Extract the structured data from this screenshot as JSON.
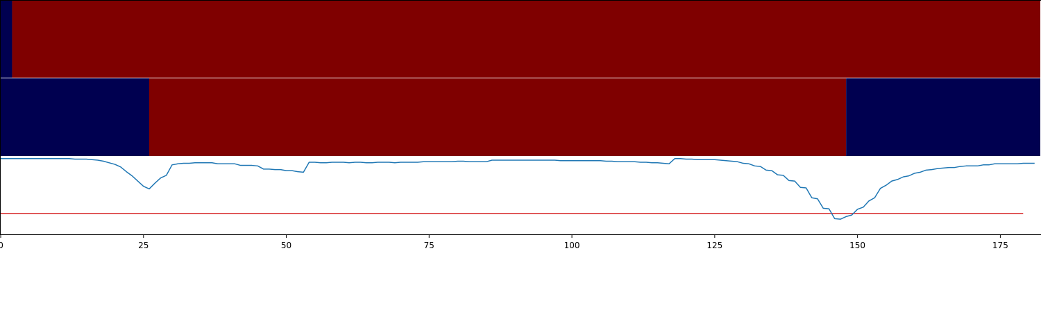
{
  "chart_data": {
    "type": "line",
    "panels": [
      {
        "name": "top-heatmap-strip",
        "type": "heatmap",
        "segments": [
          {
            "start": 0,
            "end": 2,
            "state": "low"
          },
          {
            "start": 2,
            "end": 182,
            "state": "high"
          }
        ]
      },
      {
        "name": "middle-heatmap-strip",
        "type": "heatmap",
        "segments": [
          {
            "start": 0,
            "end": 26,
            "state": "low"
          },
          {
            "start": 26,
            "end": 148,
            "state": "high"
          },
          {
            "start": 148,
            "end": 182,
            "state": "low"
          }
        ]
      },
      {
        "name": "line-panel",
        "type": "line",
        "xlim": [
          0,
          182
        ],
        "ylim": [
          -0.4,
          1.1
        ],
        "threshold": 0,
        "series": [
          {
            "x": [
              0,
              1,
              2,
              3,
              4,
              5,
              6,
              7,
              8,
              9,
              10,
              11,
              12,
              13,
              14,
              15,
              16,
              17,
              18,
              19,
              20,
              21,
              22,
              23,
              24,
              25,
              26,
              27,
              28,
              29,
              30,
              31,
              32,
              33,
              34,
              35,
              36,
              37,
              38,
              39,
              40,
              41,
              42,
              43,
              44,
              45,
              46,
              47,
              48,
              49,
              50,
              51,
              52,
              53,
              54,
              55,
              56,
              57,
              58,
              59,
              60,
              61,
              62,
              63,
              64,
              65,
              66,
              67,
              68,
              69,
              70,
              71,
              72,
              73,
              74,
              75,
              76,
              77,
              78,
              79,
              80,
              81,
              82,
              83,
              84,
              85,
              86,
              87,
              88,
              89,
              90,
              91,
              92,
              93,
              94,
              95,
              96,
              97,
              98,
              99,
              100,
              101,
              102,
              103,
              104,
              105,
              106,
              107,
              108,
              109,
              110,
              111,
              112,
              113,
              114,
              115,
              116,
              117,
              118,
              119,
              120,
              121,
              122,
              123,
              124,
              125,
              126,
              127,
              128,
              129,
              130,
              131,
              132,
              133,
              134,
              135,
              136,
              137,
              138,
              139,
              140,
              141,
              142,
              143,
              144,
              145,
              146,
              147,
              148,
              149,
              150,
              151,
              152,
              153,
              154,
              155,
              156,
              157,
              158,
              159,
              160,
              161,
              162,
              163,
              164,
              165,
              166,
              167,
              168,
              169,
              170,
              171,
              172,
              173,
              174,
              175,
              176,
              177,
              178,
              179,
              180,
              181
            ],
            "y": [
              1.05,
              1.05,
              1.05,
              1.05,
              1.05,
              1.05,
              1.05,
              1.05,
              1.05,
              1.05,
              1.05,
              1.05,
              1.05,
              1.04,
              1.04,
              1.04,
              1.03,
              1.02,
              1.0,
              0.97,
              0.94,
              0.89,
              0.8,
              0.72,
              0.62,
              0.52,
              0.47,
              0.58,
              0.68,
              0.73,
              0.93,
              0.95,
              0.96,
              0.96,
              0.97,
              0.97,
              0.97,
              0.97,
              0.95,
              0.95,
              0.95,
              0.95,
              0.92,
              0.92,
              0.92,
              0.91,
              0.85,
              0.85,
              0.84,
              0.84,
              0.82,
              0.82,
              0.8,
              0.79,
              0.98,
              0.98,
              0.97,
              0.97,
              0.98,
              0.98,
              0.98,
              0.97,
              0.98,
              0.98,
              0.97,
              0.97,
              0.98,
              0.98,
              0.98,
              0.97,
              0.98,
              0.98,
              0.98,
              0.98,
              0.99,
              0.99,
              0.99,
              0.99,
              0.99,
              0.99,
              1.0,
              1.0,
              0.99,
              0.99,
              0.99,
              0.99,
              1.02,
              1.02,
              1.02,
              1.02,
              1.02,
              1.02,
              1.02,
              1.02,
              1.02,
              1.02,
              1.02,
              1.02,
              1.01,
              1.01,
              1.01,
              1.01,
              1.01,
              1.01,
              1.01,
              1.01,
              1.0,
              1.0,
              0.99,
              0.99,
              0.99,
              0.99,
              0.98,
              0.98,
              0.97,
              0.97,
              0.96,
              0.95,
              1.05,
              1.05,
              1.04,
              1.04,
              1.03,
              1.03,
              1.03,
              1.03,
              1.02,
              1.01,
              1.0,
              0.99,
              0.96,
              0.95,
              0.91,
              0.9,
              0.83,
              0.82,
              0.74,
              0.73,
              0.63,
              0.62,
              0.5,
              0.49,
              0.3,
              0.28,
              0.1,
              0.09,
              -0.1,
              -0.11,
              -0.06,
              -0.03,
              0.08,
              0.12,
              0.24,
              0.3,
              0.48,
              0.54,
              0.62,
              0.65,
              0.7,
              0.72,
              0.77,
              0.79,
              0.83,
              0.84,
              0.86,
              0.87,
              0.88,
              0.88,
              0.9,
              0.91,
              0.91,
              0.91,
              0.93,
              0.93,
              0.95,
              0.95,
              0.95,
              0.95,
              0.95,
              0.96,
              0.96,
              0.96
            ]
          }
        ]
      }
    ],
    "xticks": [
      0,
      25,
      50,
      75,
      100,
      125,
      150,
      175
    ],
    "xtick_labels": [
      "0",
      "25",
      "50",
      "75",
      "100",
      "125",
      "150",
      "175"
    ],
    "colors": {
      "high": "#7f0000",
      "low": "#000050",
      "line": "#1f77b4",
      "threshold": "#d62728",
      "spine": "#000000",
      "background": "#ffffff"
    },
    "title": "",
    "xlabel": "",
    "ylabel": "",
    "grid": false,
    "legend": "none"
  }
}
